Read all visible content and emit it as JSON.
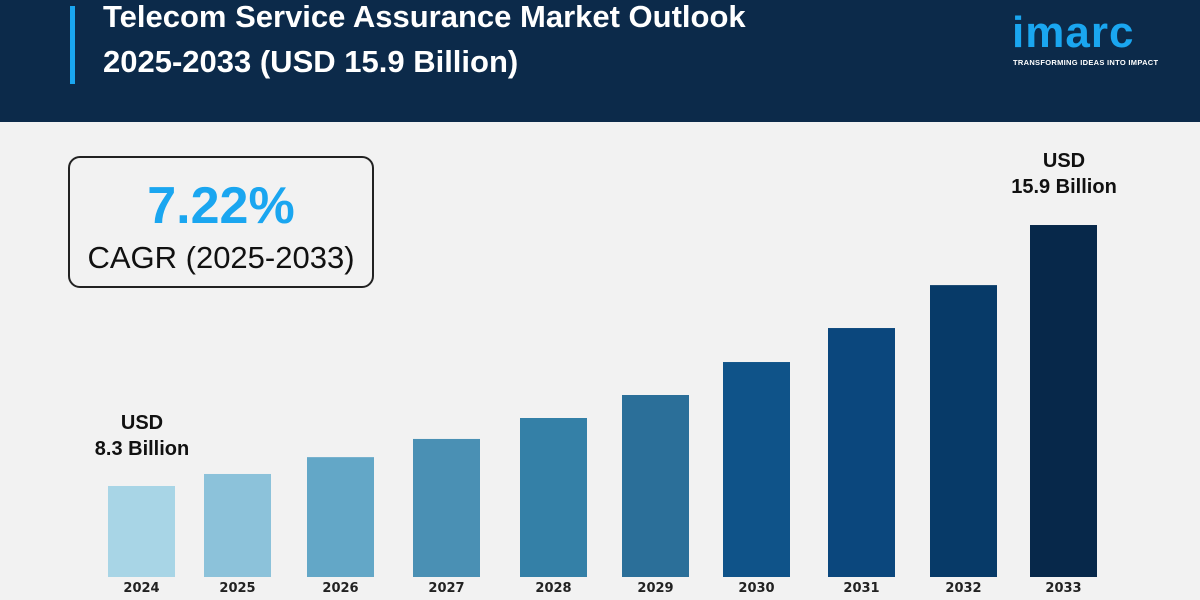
{
  "header": {
    "title_line1": "Telecom Service Assurance Market Outlook",
    "title_line2": "2025-2033 (USD 15.9 Billion)",
    "logo_text": "imarc",
    "logo_tagline": "TRANSFORMING IDEAS INTO IMPACT"
  },
  "cagr": {
    "value": "7.22%",
    "label": "CAGR (2025-2033)"
  },
  "colors": {
    "header_bg": "#0c2a4a",
    "accent": "#1aa6f0",
    "background": "#f2f2f2"
  },
  "chart_data": {
    "type": "bar",
    "title": "Telecom Service Assurance Market Outlook 2025-2033 (USD 15.9 Billion)",
    "unit": "USD Billion",
    "categories": [
      "2024",
      "2025",
      "2026",
      "2027",
      "2028",
      "2029",
      "2030",
      "2031",
      "2032",
      "2033"
    ],
    "values": [
      8.3,
      8.65,
      9.14,
      9.67,
      10.28,
      10.95,
      11.91,
      12.9,
      14.15,
      15.9
    ],
    "bar_colors": [
      "#a8d5e6",
      "#8cc2da",
      "#63a7c7",
      "#4a90b4",
      "#3480a7",
      "#2b6f99",
      "#0f5389",
      "#0b477d",
      "#073a68",
      "#07284a"
    ],
    "annotations": [
      {
        "category": "2024",
        "line1": "USD",
        "line2": "8.3 Billion"
      },
      {
        "category": "2033",
        "line1": "USD",
        "line2": "15.9 Billion"
      }
    ],
    "grid": false,
    "legend": "none"
  }
}
